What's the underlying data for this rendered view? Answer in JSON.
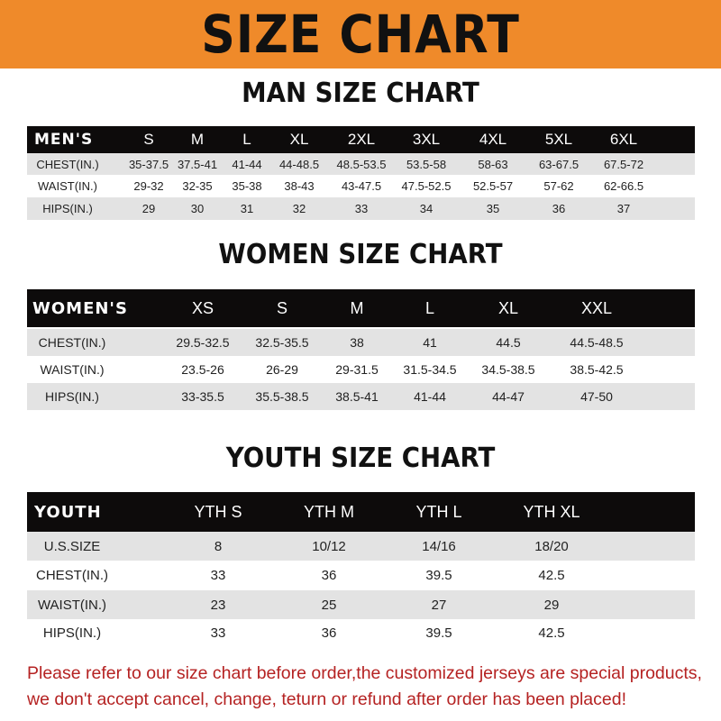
{
  "banner_title": "SIZE CHART",
  "colors": {
    "banner": "#ef8a2a",
    "header_row": "#0d0b0b",
    "stripe": "#e3e3e3",
    "footer_text": "#b52222"
  },
  "men": {
    "title": "MAN SIZE CHART",
    "header": [
      "MEN'S",
      "S",
      "M",
      "L",
      "XL",
      "2XL",
      "3XL",
      "4XL",
      "5XL",
      "6XL"
    ],
    "rows": [
      [
        "CHEST(IN.)",
        "35-37.5",
        "37.5-41",
        "41-44",
        "44-48.5",
        "48.5-53.5",
        "53.5-58",
        "58-63",
        "63-67.5",
        "67.5-72"
      ],
      [
        "WAIST(IN.)",
        "29-32",
        "32-35",
        "35-38",
        "38-43",
        "43-47.5",
        "47.5-52.5",
        "52.5-57",
        "57-62",
        "62-66.5"
      ],
      [
        "HIPS(IN.)",
        "29",
        "30",
        "31",
        "32",
        "33",
        "34",
        "35",
        "36",
        "37"
      ]
    ]
  },
  "women": {
    "title": "WOMEN SIZE CHART",
    "header": [
      "WOMEN'S",
      "XS",
      "S",
      "M",
      "L",
      "XL",
      "XXL"
    ],
    "rows": [
      [
        "CHEST(IN.)",
        "29.5-32.5",
        "32.5-35.5",
        "38",
        "41",
        "44.5",
        "44.5-48.5"
      ],
      [
        "WAIST(IN.)",
        "23.5-26",
        "26-29",
        "29-31.5",
        "31.5-34.5",
        "34.5-38.5",
        "38.5-42.5"
      ],
      [
        "HIPS(IN.)",
        "33-35.5",
        "35.5-38.5",
        "38.5-41",
        "41-44",
        "44-47",
        "47-50"
      ]
    ]
  },
  "youth": {
    "title": "YOUTH SIZE CHART",
    "header": [
      "YOUTH",
      "YTH S",
      "YTH M",
      "YTH L",
      "YTH XL"
    ],
    "rows": [
      [
        "U.S.SIZE",
        "8",
        "10/12",
        "14/16",
        "18/20"
      ],
      [
        "CHEST(IN.)",
        "33",
        "36",
        "39.5",
        "42.5"
      ],
      [
        "WAIST(IN.)",
        "23",
        "25",
        "27",
        "29"
      ],
      [
        "HIPS(IN.)",
        "33",
        "36",
        "39.5",
        "42.5"
      ]
    ]
  },
  "footer": {
    "line1": "Please refer to our size chart before order,the customized jerseys are special products,",
    "line2": "we don't accept cancel, change, teturn or refund after order has been placed!"
  }
}
